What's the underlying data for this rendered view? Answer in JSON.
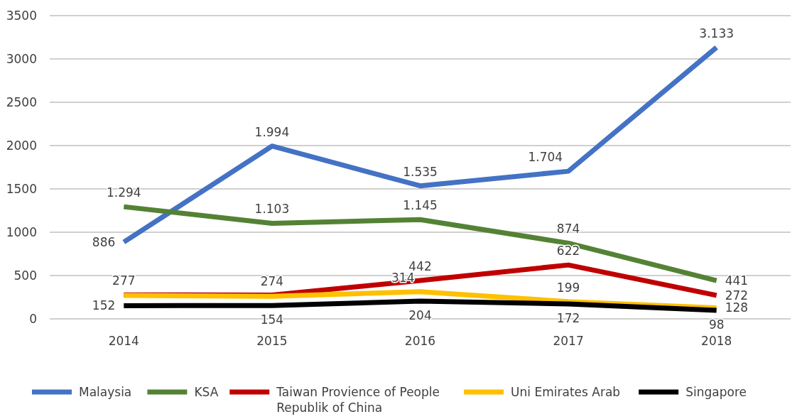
{
  "chart_data": {
    "type": "line",
    "categories": [
      "2014",
      "2015",
      "2016",
      "2017",
      "2018"
    ],
    "ylim": [
      0,
      3500
    ],
    "yticks": [
      0,
      500,
      1000,
      1500,
      2000,
      2500,
      3000,
      3500
    ],
    "grid": "y",
    "legend": "bottom",
    "marker": "none",
    "line_style": "solid",
    "series": [
      {
        "name": "Malaysia",
        "color": "#4472c4",
        "values": [
          886,
          1994,
          1535,
          1704,
          3133
        ],
        "value_labels": [
          "886",
          "1.994",
          "1.535",
          "1.704",
          "3.133"
        ]
      },
      {
        "name": "KSA",
        "color": "#548235",
        "values": [
          1294,
          1103,
          1145,
          874,
          441
        ],
        "value_labels": [
          "1.294",
          "1.103",
          "1.145",
          "874",
          "441"
        ]
      },
      {
        "name": "Taiwan Provience of People Republik of China",
        "color": "#c00000",
        "values": [
          277,
          274,
          442,
          622,
          272
        ],
        "value_labels": [
          "277",
          "274",
          "442",
          "622",
          "272"
        ]
      },
      {
        "name": "Uni Emirates Arab",
        "color": "#ffc000",
        "values": [
          270,
          260,
          314,
          199,
          128
        ],
        "value_labels": [
          null,
          null,
          "314",
          "199",
          "128"
        ]
      },
      {
        "name": "Singapore",
        "color": "#000000",
        "values": [
          152,
          154,
          204,
          172,
          98
        ],
        "value_labels": [
          "152",
          "154",
          "204",
          "172",
          "98"
        ]
      }
    ]
  }
}
